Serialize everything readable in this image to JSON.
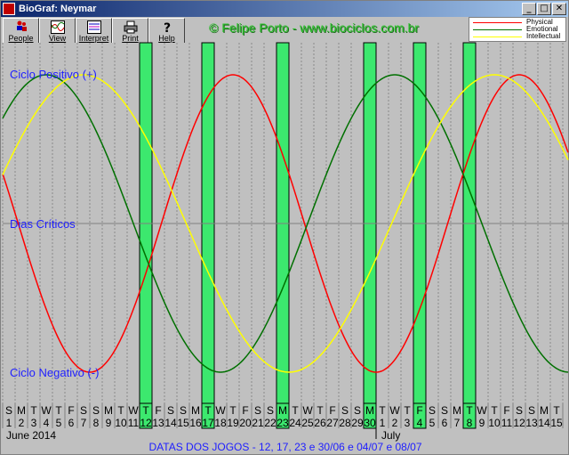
{
  "window": {
    "title": "BioGraf: Neymar",
    "minimize": "_",
    "maximize": "□",
    "close": "✕"
  },
  "toolbar": {
    "buttons": [
      {
        "label": "People",
        "icon": "people-icon"
      },
      {
        "label": "View",
        "icon": "view-icon"
      },
      {
        "label": "Interpret",
        "icon": "interpret-icon"
      },
      {
        "label": "Print",
        "icon": "printer-icon"
      },
      {
        "label": "Help",
        "icon": "help-icon"
      }
    ]
  },
  "copyright": "© Felipe Porto - www.biociclos.com.br",
  "legend": {
    "physical": "Physical",
    "emotional": "Emotional",
    "intellectual": "Intellectual"
  },
  "labels": {
    "positive": "Ciclo Positivo (+)",
    "critical": "Dias Críticos",
    "negative": "Ciclo Negativo (-)"
  },
  "months": {
    "june": "June 2014",
    "july": "July"
  },
  "footer": "DATAS DOS JOGOS - 12, 17, 23 e 30/06 e 04/07 e 08/07",
  "colors": {
    "physical": "#ff0000",
    "emotional": "#007000",
    "intellectual": "#ffff00",
    "highlight": "#3ce86e",
    "label_blue": "#1e1eff"
  },
  "chart_data": {
    "type": "line",
    "x_days": {
      "weekday": [
        "S",
        "M",
        "T",
        "W",
        "T",
        "F",
        "S",
        "S",
        "M",
        "T",
        "W",
        "T",
        "F",
        "S",
        "S",
        "M",
        "T",
        "W",
        "T",
        "F",
        "S",
        "S",
        "M",
        "T",
        "W",
        "T",
        "F",
        "S",
        "S",
        "M",
        "T",
        "W",
        "T",
        "F",
        "S",
        "S",
        "M",
        "T",
        "W",
        "T",
        "F",
        "S",
        "S",
        "M",
        "T"
      ],
      "day": [
        "1",
        "2",
        "3",
        "4",
        "5",
        "6",
        "7",
        "8",
        "9",
        "10",
        "11",
        "12",
        "13",
        "14",
        "15",
        "16",
        "17",
        "18",
        "19",
        "20",
        "21",
        "22",
        "23",
        "24",
        "25",
        "26",
        "27",
        "28",
        "29",
        "30",
        "1",
        "2",
        "3",
        "4",
        "5",
        "6",
        "7",
        "8",
        "9",
        "10",
        "11",
        "12",
        "13",
        "14",
        "15"
      ]
    },
    "highlighted_day_index": [
      11,
      16,
      22,
      29,
      33,
      37
    ],
    "ylim": [
      -1,
      1
    ],
    "series": [
      {
        "name": "Physical",
        "period_days": 23,
        "peak_day_index": 18
      },
      {
        "name": "Emotional",
        "period_days": 28,
        "peak_day_index": 3
      },
      {
        "name": "Intellectual",
        "period_days": 33,
        "peak_day_index": 6
      }
    ]
  }
}
